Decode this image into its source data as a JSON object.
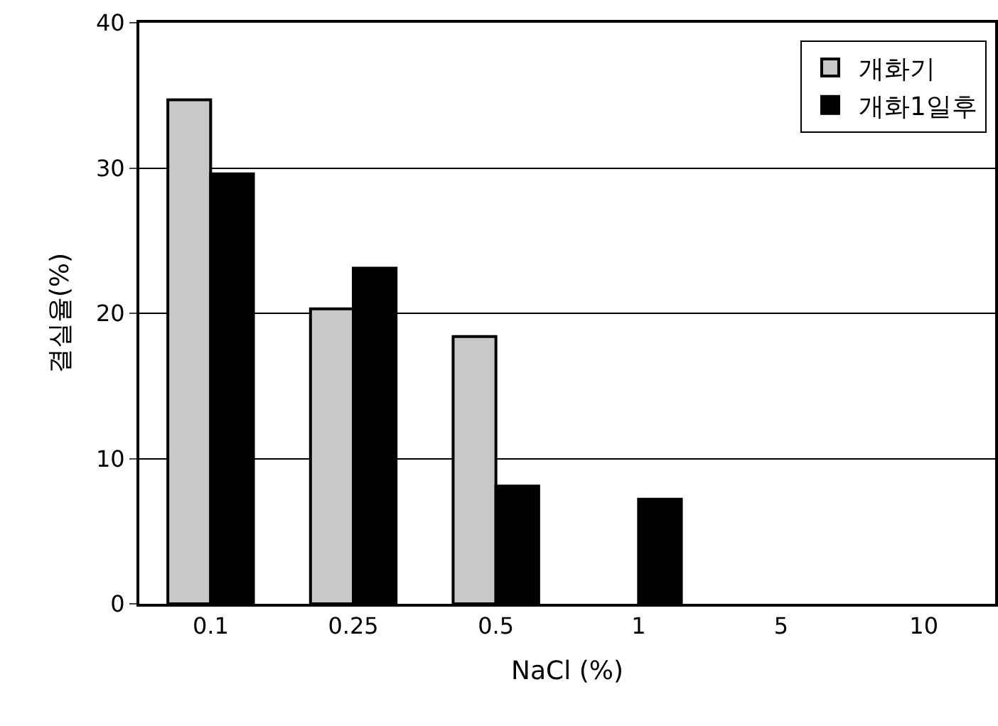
{
  "chart_data": {
    "type": "bar",
    "xlabel": "NaCl (%)",
    "ylabel": "결실율(%)",
    "categories": [
      "0.1",
      "0.25",
      "0.5",
      "1",
      "5",
      "10"
    ],
    "series": [
      {
        "name": "개화기",
        "color": "#c8c8c8",
        "values": [
          34.7,
          20.3,
          18.4,
          null,
          null,
          null
        ]
      },
      {
        "name": "개화1일후",
        "color": "#000000",
        "values": [
          29.6,
          23.1,
          8.1,
          7.2,
          null,
          null
        ]
      }
    ],
    "ylim": [
      0,
      40
    ],
    "yticks": [
      0,
      10,
      20,
      30,
      40
    ],
    "grid": "y",
    "legend": "top right"
  }
}
